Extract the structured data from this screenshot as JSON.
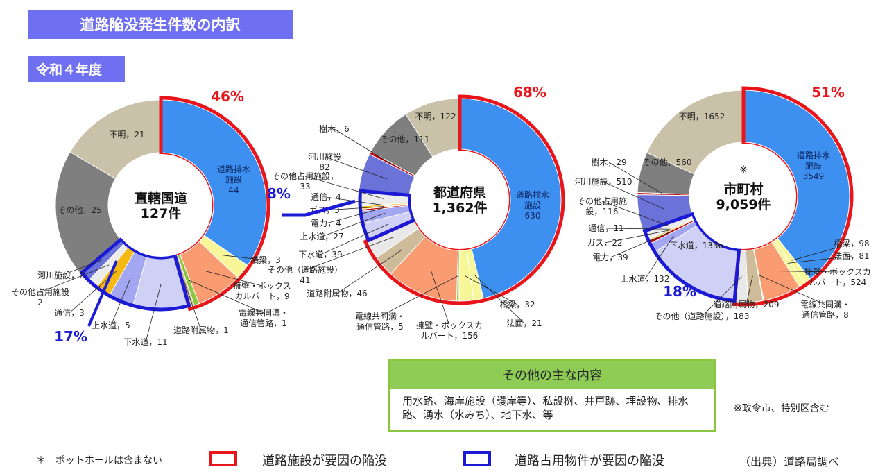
{
  "title": "道路陥没発生件数の内訳",
  "year": "令和４年度",
  "chart_data": [
    {
      "type": "pie",
      "center_label": [
        "直轄国道",
        "127件"
      ],
      "road_facility_pct": "46%",
      "occupancy_pct": "17%",
      "slices": [
        {
          "name": "道路排水施設",
          "value": 44,
          "label": [
            "道路排水",
            "施設",
            "44"
          ],
          "color": "#3d8ff0"
        },
        {
          "name": "橋梁",
          "value": 3,
          "label": [
            "橋梁，3"
          ],
          "color": "#f7f79a"
        },
        {
          "name": "擁壁・ボックスカルバート",
          "value": 9,
          "label": [
            "擁壁・ボックス",
            "カルバート，9"
          ],
          "color": "#f99c72"
        },
        {
          "name": "電線共同溝・通信管路",
          "value": 1,
          "label": [
            "電線共同溝・",
            "通信管路，1"
          ],
          "color": "#8cc63f"
        },
        {
          "name": "道路附属物",
          "value": 1,
          "label": [
            "道路附属物，1"
          ],
          "color": "#cdbb9a"
        },
        {
          "name": "下水道",
          "value": 11,
          "label": [
            "下水道，11"
          ],
          "color": "#cfd0f6"
        },
        {
          "name": "上水道",
          "value": 5,
          "label": [
            "上水道，5"
          ],
          "color": "#a3a7f2"
        },
        {
          "name": "通信",
          "value": 3,
          "label": [
            "通信，3"
          ],
          "color": "#f6b913"
        },
        {
          "name": "その他占用施設",
          "value": 2,
          "label": [
            "その他占用施設",
            "2"
          ],
          "color": "#ececec"
        },
        {
          "name": "河川施設",
          "value": 2,
          "label": [
            "河川施設，2"
          ],
          "color": "#6b72d8"
        },
        {
          "name": "その他",
          "value": 25,
          "label": [
            "その他，25"
          ],
          "color": "#7f7f7f"
        },
        {
          "name": "不明",
          "value": 21,
          "label": [
            "不明，21"
          ],
          "color": "#c9c2a8"
        }
      ]
    },
    {
      "type": "pie",
      "center_label": [
        "都道府県",
        "1,362件"
      ],
      "road_facility_pct": "68%",
      "occupancy_pct": "8%",
      "slices": [
        {
          "name": "道路排水施設",
          "value": 630,
          "label": [
            "道路排水",
            "施設",
            "630"
          ],
          "color": "#3d8ff0"
        },
        {
          "name": "法面",
          "value": 21,
          "label": [
            "法面，21"
          ],
          "color": "#f7f79a"
        },
        {
          "name": "橋梁",
          "value": 32,
          "label": [
            "橋梁，32"
          ],
          "color": "#f7f79a"
        },
        {
          "name": "電線共同溝・通信管路",
          "value": 5,
          "label": [
            "電線共同溝・",
            "通信管路，5"
          ],
          "color": "#8cc63f"
        },
        {
          "name": "擁壁・ボックスカルバート",
          "value": 156,
          "label": [
            "擁壁・ボックスカ",
            "ルバート，156"
          ],
          "color": "#f99c72"
        },
        {
          "name": "道路附属物",
          "value": 46,
          "label": [
            "道路附属物，46"
          ],
          "color": "#cdbb9a"
        },
        {
          "name": "その他（道路施設）",
          "value": 41,
          "label": [
            "その他（道路施設）",
            "41"
          ],
          "color": "#e8e8e8"
        },
        {
          "name": "下水道",
          "value": 39,
          "label": [
            "下水道，39"
          ],
          "color": "#cfd0f6"
        },
        {
          "name": "上水道",
          "value": 27,
          "label": [
            "上水道，27"
          ],
          "color": "#a3a7f2"
        },
        {
          "name": "電力",
          "value": 4,
          "label": [
            "電力，4"
          ],
          "color": "#c00000"
        },
        {
          "name": "ガス",
          "value": 3,
          "label": [
            "ガス，3"
          ],
          "color": "#f6b913"
        },
        {
          "name": "通信",
          "value": 4,
          "label": [
            "通信，4"
          ],
          "color": "#f6b913"
        },
        {
          "name": "その他占用施設",
          "value": 33,
          "label": [
            "その他占用施設，",
            "33"
          ],
          "color": "#ececec"
        },
        {
          "name": "河川施設",
          "value": 82,
          "label": [
            "河川施設",
            "82"
          ],
          "color": "#6b72d8"
        },
        {
          "name": "樹木",
          "value": 6,
          "label": [
            "樹木，6"
          ],
          "color": "#c00000"
        },
        {
          "name": "その他",
          "value": 111,
          "label": [
            "その他，111"
          ],
          "color": "#7f7f7f"
        },
        {
          "name": "不明",
          "value": 122,
          "label": [
            "不明，122"
          ],
          "color": "#c9c2a8"
        }
      ]
    },
    {
      "type": "pie",
      "center_label": [
        "市町村",
        "9,059件"
      ],
      "center_mark": "※",
      "road_facility_pct": "51%",
      "occupancy_pct": "18%",
      "slices": [
        {
          "name": "道路排水施設",
          "value": 3549,
          "label": [
            "道路排水",
            "施設",
            "3549"
          ],
          "color": "#3d8ff0"
        },
        {
          "name": "橋梁",
          "value": 98,
          "label": [
            "橋梁，98"
          ],
          "color": "#f7f79a"
        },
        {
          "name": "法面",
          "value": 81,
          "label": [
            "法面，81"
          ],
          "color": "#f7f79a"
        },
        {
          "name": "擁壁・ボックスカルバート",
          "value": 524,
          "label": [
            "擁壁・ボックスカ",
            "ルバート，524"
          ],
          "color": "#f99c72"
        },
        {
          "name": "電線共同溝・通信管路",
          "value": 8,
          "label": [
            "電線共同溝・",
            "通信管路，8"
          ],
          "color": "#8cc63f"
        },
        {
          "name": "道路附属物",
          "value": 209,
          "label": [
            "道路附属物，209"
          ],
          "color": "#cdbb9a"
        },
        {
          "name": "その他（道路施設）",
          "value": 183,
          "label": [
            "その他（道路施設），183"
          ],
          "color": "#e8e8e8"
        },
        {
          "name": "下水道",
          "value": 1336,
          "label": [
            "下水道，1336"
          ],
          "color": "#cfd0f6"
        },
        {
          "name": "上水道",
          "value": 132,
          "label": [
            "上水道，132"
          ],
          "color": "#a3a7f2"
        },
        {
          "name": "電力",
          "value": 39,
          "label": [
            "電力，39"
          ],
          "color": "#c00000"
        },
        {
          "name": "ガス",
          "value": 22,
          "label": [
            "ガス，22"
          ],
          "color": "#f6b913"
        },
        {
          "name": "通信",
          "value": 11,
          "label": [
            "通信，11"
          ],
          "color": "#f6b913"
        },
        {
          "name": "その他占用施設",
          "value": 116,
          "label": [
            "その他占用施",
            "設，116"
          ],
          "color": "#ececec"
        },
        {
          "name": "河川施設",
          "value": 510,
          "label": [
            "河川施設，510"
          ],
          "color": "#6b72d8"
        },
        {
          "name": "樹木",
          "value": 29,
          "label": [
            "樹木，29"
          ],
          "color": "#c00000"
        },
        {
          "name": "その他",
          "value": 560,
          "label": [
            "その他，560"
          ],
          "color": "#7f7f7f"
        },
        {
          "name": "不明",
          "value": 1652,
          "label": [
            "不明，1652"
          ],
          "color": "#c9c2a8"
        }
      ]
    }
  ],
  "others": {
    "title": "その他の主な内容",
    "body": "用水路、海岸施設（護岸等）、私設桝、井戸跡、埋設物、排水路、湧水（水みち）、地下水、等"
  },
  "notes": {
    "designated_city": "※政令市、特別区含む",
    "pothole": "＊　ポットホールは含まない",
    "source": "（出典）道路局調べ"
  },
  "legend": {
    "road_facility": "道路施設が要因の陥没",
    "occupancy": "道路占用物件が要因の陥没",
    "road_color": "#e8161b",
    "occupancy_color": "#1b1bd6"
  }
}
